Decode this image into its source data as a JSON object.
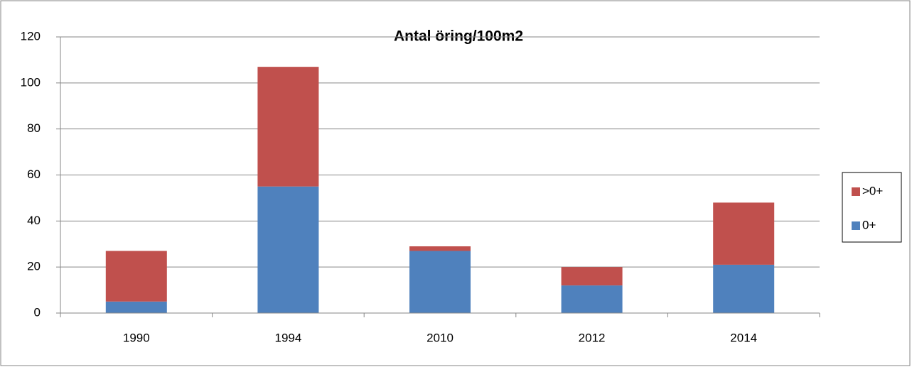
{
  "chart_data": {
    "type": "stacked_bar",
    "title": "Antal öring/100m2",
    "categories": [
      "1990",
      "1994",
      "2010",
      "2012",
      "2014"
    ],
    "series": [
      {
        "name": "0+",
        "color": "#4f81bd",
        "values": [
          5,
          55,
          27,
          12,
          21
        ]
      },
      {
        "name": ">0+",
        "color": "#c0504d",
        "values": [
          22,
          52,
          2,
          8,
          27
        ]
      }
    ],
    "ylim": [
      0,
      120
    ],
    "yticks": [
      0,
      20,
      40,
      60,
      80,
      100,
      120
    ],
    "grid": true,
    "legend": "right"
  }
}
